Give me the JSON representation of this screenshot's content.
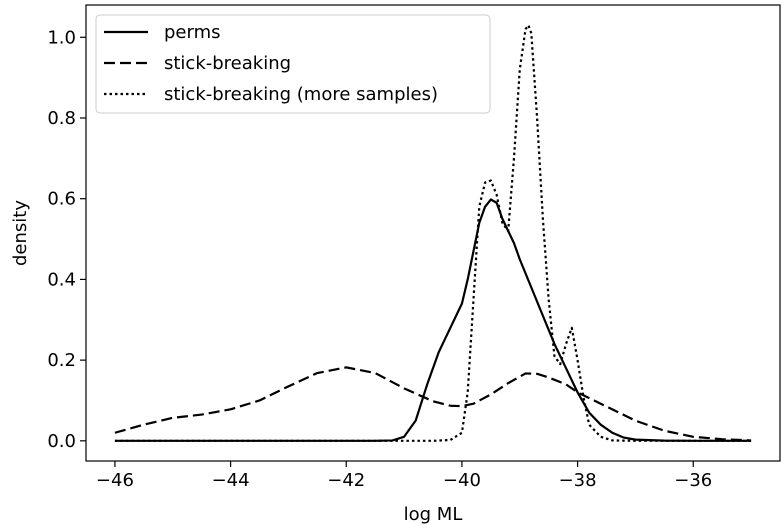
{
  "chart_data": {
    "type": "line",
    "title": "",
    "xlabel": "log ML",
    "ylabel": "density",
    "xlim": [
      -46.5,
      -34.5
    ],
    "ylim": [
      -0.05,
      1.08
    ],
    "xticks": [
      -46,
      -44,
      -42,
      -40,
      -38,
      -36
    ],
    "xtick_labels": [
      "−46",
      "−44",
      "−42",
      "−40",
      "−38",
      "−36"
    ],
    "yticks": [
      0.0,
      0.2,
      0.4,
      0.6,
      0.8,
      1.0
    ],
    "ytick_labels": [
      "0.0",
      "0.2",
      "0.4",
      "0.6",
      "0.8",
      "1.0"
    ],
    "grid": false,
    "legend_position": "top-left",
    "series": [
      {
        "name": "perms",
        "style": "solid",
        "color": "#000000",
        "points": [
          [
            -46,
            0
          ],
          [
            -45,
            0
          ],
          [
            -44,
            0
          ],
          [
            -43,
            0
          ],
          [
            -42,
            0
          ],
          [
            -41.5,
            0
          ],
          [
            -41.2,
            0.001
          ],
          [
            -41,
            0.01
          ],
          [
            -40.8,
            0.05
          ],
          [
            -40.6,
            0.14
          ],
          [
            -40.4,
            0.22
          ],
          [
            -40.2,
            0.28
          ],
          [
            -40,
            0.34
          ],
          [
            -39.9,
            0.4
          ],
          [
            -39.8,
            0.47
          ],
          [
            -39.7,
            0.54
          ],
          [
            -39.6,
            0.58
          ],
          [
            -39.5,
            0.598
          ],
          [
            -39.4,
            0.59
          ],
          [
            -39.3,
            0.55
          ],
          [
            -39.2,
            0.52
          ],
          [
            -39.1,
            0.49
          ],
          [
            -39,
            0.45
          ],
          [
            -38.8,
            0.38
          ],
          [
            -38.6,
            0.31
          ],
          [
            -38.4,
            0.24
          ],
          [
            -38.2,
            0.18
          ],
          [
            -38,
            0.12
          ],
          [
            -37.8,
            0.07
          ],
          [
            -37.6,
            0.04
          ],
          [
            -37.4,
            0.02
          ],
          [
            -37.2,
            0.008
          ],
          [
            -37,
            0.003
          ],
          [
            -36.5,
            0.0005
          ],
          [
            -36,
            0
          ],
          [
            -35.5,
            0
          ],
          [
            -35,
            0
          ]
        ]
      },
      {
        "name": "stick-breaking",
        "style": "dashed",
        "color": "#000000",
        "points": [
          [
            -46,
            0.02
          ],
          [
            -45.5,
            0.04
          ],
          [
            -45,
            0.057
          ],
          [
            -44.5,
            0.065
          ],
          [
            -44,
            0.078
          ],
          [
            -43.5,
            0.1
          ],
          [
            -43,
            0.135
          ],
          [
            -42.5,
            0.168
          ],
          [
            -42,
            0.182
          ],
          [
            -41.5,
            0.168
          ],
          [
            -41,
            0.13
          ],
          [
            -40.5,
            0.098
          ],
          [
            -40.2,
            0.087
          ],
          [
            -40,
            0.086
          ],
          [
            -39.8,
            0.092
          ],
          [
            -39.5,
            0.115
          ],
          [
            -39.2,
            0.143
          ],
          [
            -38.9,
            0.167
          ],
          [
            -38.7,
            0.166
          ],
          [
            -38.5,
            0.157
          ],
          [
            -38.2,
            0.14
          ],
          [
            -38,
            0.12
          ],
          [
            -37.5,
            0.085
          ],
          [
            -37,
            0.05
          ],
          [
            -36.5,
            0.025
          ],
          [
            -36,
            0.01
          ],
          [
            -35.5,
            0.004
          ],
          [
            -35,
            0.001
          ]
        ]
      },
      {
        "name": "stick-breaking (more samples)",
        "style": "dotted",
        "color": "#000000",
        "points": [
          [
            -46,
            0
          ],
          [
            -45,
            0
          ],
          [
            -44,
            0
          ],
          [
            -43,
            0
          ],
          [
            -42,
            0
          ],
          [
            -41,
            0
          ],
          [
            -40.5,
            0
          ],
          [
            -40.2,
            0.002
          ],
          [
            -40,
            0.02
          ],
          [
            -39.9,
            0.12
          ],
          [
            -39.8,
            0.35
          ],
          [
            -39.7,
            0.58
          ],
          [
            -39.6,
            0.64
          ],
          [
            -39.5,
            0.645
          ],
          [
            -39.4,
            0.61
          ],
          [
            -39.3,
            0.54
          ],
          [
            -39.2,
            0.52
          ],
          [
            -39.1,
            0.7
          ],
          [
            -39.0,
            0.92
          ],
          [
            -38.9,
            1.02
          ],
          [
            -38.85,
            1.03
          ],
          [
            -38.8,
            1.01
          ],
          [
            -38.7,
            0.8
          ],
          [
            -38.6,
            0.55
          ],
          [
            -38.5,
            0.35
          ],
          [
            -38.4,
            0.21
          ],
          [
            -38.3,
            0.19
          ],
          [
            -38.2,
            0.24
          ],
          [
            -38.1,
            0.28
          ],
          [
            -38.0,
            0.2
          ],
          [
            -37.9,
            0.11
          ],
          [
            -37.8,
            0.04
          ],
          [
            -37.6,
            0.01
          ],
          [
            -37.4,
            0.001
          ],
          [
            -37,
            0
          ],
          [
            -36,
            0
          ],
          [
            -35,
            0
          ]
        ]
      }
    ]
  }
}
